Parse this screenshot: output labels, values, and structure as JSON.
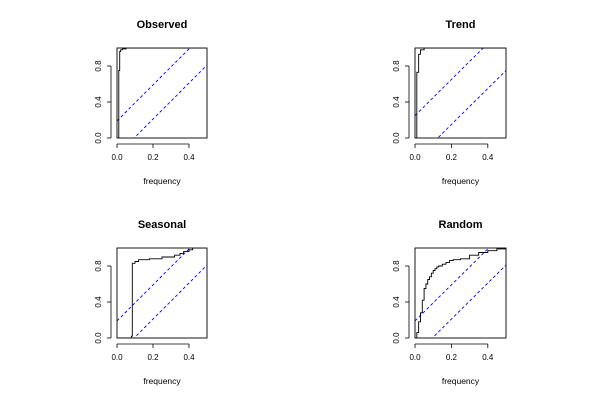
{
  "chart_data": [
    {
      "type": "line",
      "title": "Observed",
      "xlabel": "frequency",
      "xlim": [
        0,
        0.5
      ],
      "ylim": [
        0,
        1
      ],
      "xticks": [
        "0.0",
        "0.2",
        "0.4"
      ],
      "yticks": [
        "0.0",
        "0.4",
        "0.8"
      ],
      "band_offset": 0.19,
      "steps": {
        "x": [
          0.0,
          0.005,
          0.01,
          0.015,
          0.02,
          0.03,
          0.05,
          0.5
        ],
        "y": [
          0.0,
          0.0,
          0.75,
          0.96,
          0.98,
          0.99,
          1.0,
          1.0
        ]
      }
    },
    {
      "type": "line",
      "title": "Trend",
      "xlabel": "frequency",
      "xlim": [
        0,
        0.5
      ],
      "ylim": [
        0,
        1
      ],
      "xticks": [
        "0.0",
        "0.2",
        "0.4"
      ],
      "yticks": [
        "0.0",
        "0.4",
        "0.8"
      ],
      "band_offset": 0.25,
      "steps": {
        "x": [
          0.0,
          0.005,
          0.01,
          0.02,
          0.03,
          0.05,
          0.5
        ],
        "y": [
          0.0,
          0.0,
          0.73,
          0.93,
          0.98,
          1.0,
          1.0
        ]
      }
    },
    {
      "type": "line",
      "title": "Seasonal",
      "xlabel": "frequency",
      "xlim": [
        0,
        0.5
      ],
      "ylim": [
        0,
        1
      ],
      "xticks": [
        "0.0",
        "0.2",
        "0.4"
      ],
      "yticks": [
        "0.0",
        "0.4",
        "0.8"
      ],
      "band_offset": 0.19,
      "steps": {
        "x": [
          0.0,
          0.02,
          0.08,
          0.085,
          0.1,
          0.12,
          0.18,
          0.25,
          0.32,
          0.35,
          0.37,
          0.4,
          0.42,
          0.5
        ],
        "y": [
          0.0,
          0.0,
          0.02,
          0.83,
          0.85,
          0.87,
          0.88,
          0.9,
          0.92,
          0.94,
          0.96,
          0.98,
          1.0,
          1.0
        ]
      }
    },
    {
      "type": "line",
      "title": "Random",
      "xlabel": "frequency",
      "xlim": [
        0,
        0.5
      ],
      "ylim": [
        0,
        1
      ],
      "xticks": [
        "0.0",
        "0.2",
        "0.4"
      ],
      "yticks": [
        "0.0",
        "0.4",
        "0.8"
      ],
      "band_offset": 0.19,
      "steps": {
        "x": [
          0.0,
          0.01,
          0.02,
          0.03,
          0.04,
          0.05,
          0.06,
          0.07,
          0.08,
          0.09,
          0.1,
          0.11,
          0.12,
          0.13,
          0.15,
          0.17,
          0.19,
          0.21,
          0.25,
          0.3,
          0.35,
          0.4,
          0.45,
          0.5
        ],
        "y": [
          0.0,
          0.06,
          0.18,
          0.28,
          0.42,
          0.55,
          0.6,
          0.65,
          0.68,
          0.72,
          0.75,
          0.77,
          0.79,
          0.8,
          0.82,
          0.84,
          0.86,
          0.87,
          0.88,
          0.92,
          0.95,
          0.97,
          0.99,
          1.0
        ]
      }
    }
  ]
}
